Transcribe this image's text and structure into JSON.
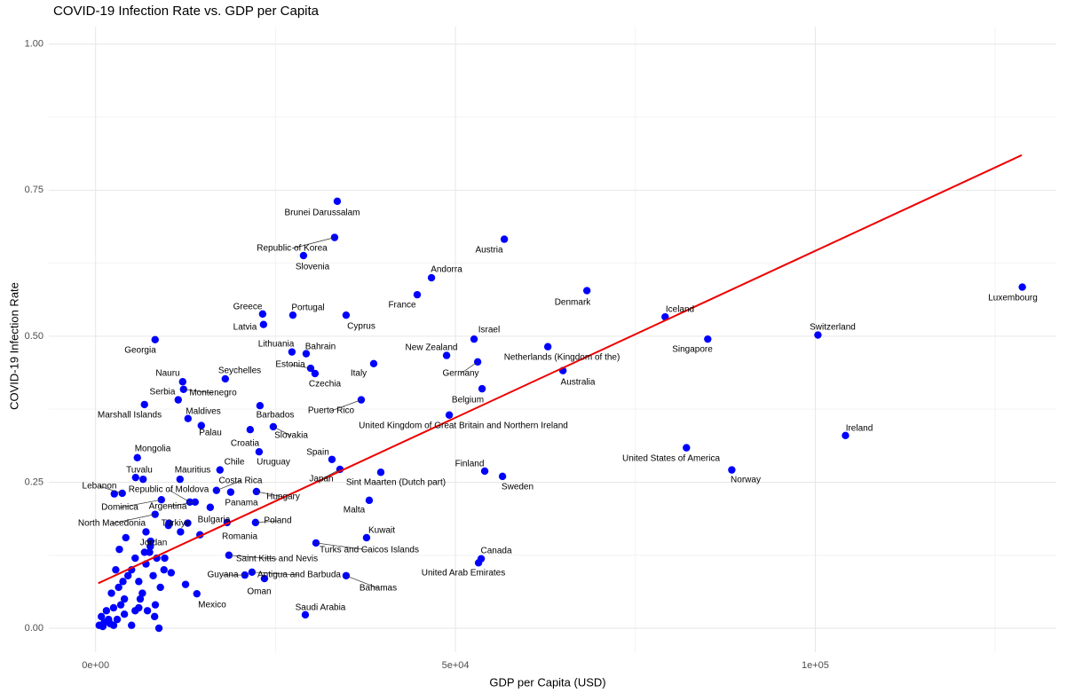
{
  "chart_data": {
    "type": "scatter",
    "title": "COVID-19 Infection Rate vs. GDP per Capita",
    "xlabel": "GDP per Capita (USD)",
    "ylabel": "COVID-19 Infection Rate",
    "color": "#0000ff",
    "grid": true,
    "xlim": [
      -6500,
      133500
    ],
    "ylim": [
      -0.041,
      1.03
    ],
    "xticks": [
      {
        "value": 0,
        "label": "0e+00"
      },
      {
        "value": 50000,
        "label": "5e+04"
      },
      {
        "value": 100000,
        "label": "1e+05"
      }
    ],
    "xminor": [
      25000,
      75000,
      125000
    ],
    "yticks": [
      {
        "value": 0,
        "label": "0.00"
      },
      {
        "value": 0.25,
        "label": "0.25"
      },
      {
        "value": 0.5,
        "label": "0.50"
      },
      {
        "value": 0.75,
        "label": "0.75"
      },
      {
        "value": 1,
        "label": "1.00"
      }
    ],
    "yminor": [
      0.125,
      0.375,
      0.625,
      0.875
    ],
    "trend": {
      "color": "#ee0000",
      "x": [
        370,
        128700
      ],
      "y": [
        0.077,
        0.81
      ]
    },
    "labels": [
      "Brunei Darussalam",
      "Republic of Korea",
      "Slovenia",
      "Austria",
      "Andorra",
      "France",
      "Denmark",
      "Luxembourg",
      "Greece",
      "Portugal",
      "Cyprus",
      "Latvia",
      "Iceland",
      "Switzerland",
      "Singapore",
      "Israel",
      "Georgia",
      "Netherlands (Kingdom of the)",
      "New Zealand",
      "Lithuania",
      "Bahrain",
      "Estonia",
      "Germany",
      "Italy",
      "Czechia",
      "Australia",
      "Seychelles",
      "Nauru",
      "Montenegro",
      "Serbia",
      "Belgium",
      "Puerto Rico",
      "Marshall Islands",
      "Barbados",
      "Maldives",
      "United Kingdom of Great Britain and Northern Ireland",
      "Palau",
      "Slovakia",
      "Ireland",
      "Croatia",
      "Mongolia",
      "United States of America",
      "Uruguay",
      "Spain",
      "Chile",
      "Norway",
      "Finland",
      "Sint Maarten (Dutch part)",
      "Japan",
      "Sweden",
      "Tuvalu",
      "Mauritius",
      "Lebanon",
      "Costa Rica",
      "Republic of Moldova",
      "Dominica",
      "Argentina",
      "Panama",
      "Hungary",
      "Malta",
      "Bulgaria",
      "North Macedonia",
      "Türkiye",
      "Poland",
      "Romania",
      "Kuwait",
      "Jordan",
      "Turks and Caicos Islands",
      "Canada",
      "United Arab Emirates",
      "Saint Kitts and Nevis",
      "Guyana",
      "Antigua and Barbuda",
      "Bahamas",
      "Oman",
      "Mexico",
      "Saudi Arabia",
      null,
      null,
      null,
      null,
      null,
      null,
      null,
      null,
      null,
      null,
      null,
      null,
      null,
      null,
      null,
      null,
      null,
      null,
      null,
      null,
      null,
      null,
      null,
      null,
      null,
      null,
      null,
      null,
      null,
      null,
      null,
      null,
      null,
      null,
      null,
      null,
      null,
      null,
      null,
      null,
      null,
      null,
      null,
      null,
      null,
      null,
      null,
      null,
      null,
      null
    ],
    "x": [
      33580,
      33210,
      28890,
      56790,
      46670,
      44690,
      68270,
      128770,
      23210,
      27410,
      34810,
      23330,
      79140,
      100370,
      85060,
      52590,
      8270,
      62840,
      48770,
      27280,
      29260,
      29880,
      53090,
      38640,
      30490,
      64940,
      18020,
      12100,
      12220,
      11480,
      53700,
      36910,
      6790,
      22840,
      12840,
      49140,
      14690,
      24690,
      104200,
      21480,
      5800,
      82100,
      22720,
      32840,
      17280,
      88400,
      54070,
      39630,
      33950,
      56540,
      5560,
      11730,
      3700,
      16790,
      13090,
      9140,
      13830,
      18770,
      22350,
      38020,
      15930,
      8270,
      10120,
      22220,
      18270,
      37650,
      7650,
      30620,
      53580,
      53210,
      18520,
      20740,
      21730,
      34810,
      23460,
      14070,
      29140,
      500,
      1200,
      2000,
      800,
      1500,
      2500,
      3000,
      3500,
      4000,
      2200,
      3200,
      4500,
      5000,
      5500,
      6000,
      6500,
      7000,
      7500,
      8000,
      8500,
      9000,
      6000,
      7200,
      8200,
      8800,
      5000,
      2800,
      3300,
      4200,
      7000,
      9500,
      10500,
      12500,
      11800,
      10200,
      12800,
      14500,
      2600,
      6600,
      9600,
      4000,
      1000,
      1800,
      2500,
      6200,
      5500,
      3800,
      8300,
      7600,
      6800
    ],
    "y": [
      0.731,
      0.669,
      0.638,
      0.666,
      0.6,
      0.571,
      0.578,
      0.584,
      0.538,
      0.536,
      0.536,
      0.52,
      0.533,
      0.502,
      0.495,
      0.495,
      0.494,
      0.482,
      0.467,
      0.473,
      0.47,
      0.445,
      0.456,
      0.453,
      0.436,
      0.441,
      0.427,
      0.422,
      0.409,
      0.391,
      0.41,
      0.391,
      0.383,
      0.381,
      0.359,
      0.365,
      0.347,
      0.345,
      0.33,
      0.34,
      0.292,
      0.309,
      0.302,
      0.289,
      0.271,
      0.271,
      0.269,
      0.267,
      0.272,
      0.26,
      0.258,
      0.255,
      0.231,
      0.236,
      0.216,
      0.22,
      0.216,
      0.233,
      0.234,
      0.219,
      0.207,
      0.195,
      0.176,
      0.181,
      0.181,
      0.155,
      0.149,
      0.146,
      0.119,
      0.112,
      0.125,
      0.091,
      0.096,
      0.09,
      0.085,
      0.059,
      0.023,
      0.005,
      0.01,
      0.008,
      0.02,
      0.03,
      0.035,
      0.015,
      0.04,
      0.05,
      0.06,
      0.07,
      0.09,
      0.1,
      0.12,
      0.08,
      0.06,
      0.11,
      0.13,
      0.09,
      0.12,
      0.07,
      0.035,
      0.03,
      0.02,
      0,
      0.005,
      0.1,
      0.135,
      0.155,
      0.165,
      0.1,
      0.095,
      0.075,
      0.165,
      0.18,
      0.18,
      0.16,
      0.23,
      0.255,
      0.12,
      0.024,
      0.003,
      0.015,
      0.005,
      0.05,
      0.03,
      0.08,
      0.04,
      0.14,
      0.13
    ]
  }
}
